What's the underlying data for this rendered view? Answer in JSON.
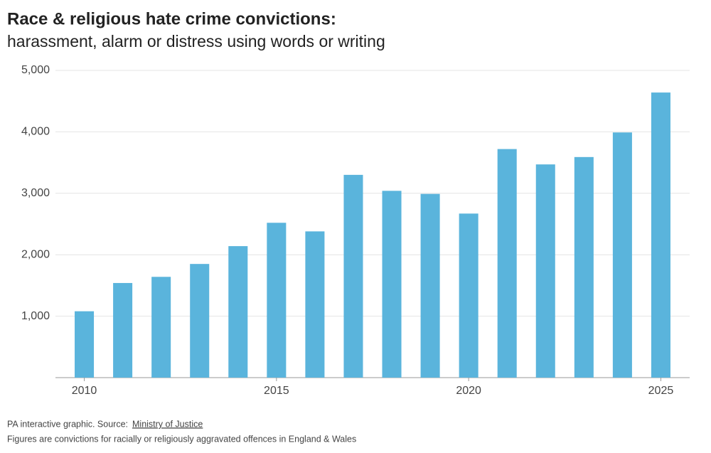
{
  "chart_data": {
    "type": "bar",
    "title": "Race & religious hate crime convictions:",
    "subtitle": "harassment, alarm or distress using words or writing",
    "x": [
      2010,
      2011,
      2012,
      2013,
      2014,
      2015,
      2016,
      2017,
      2018,
      2019,
      2020,
      2021,
      2022,
      2023,
      2024,
      2025
    ],
    "values": [
      1080,
      1540,
      1640,
      1850,
      2140,
      2520,
      2380,
      3300,
      3040,
      2990,
      2670,
      3720,
      3470,
      3590,
      3990,
      4640
    ],
    "color": "#5ab4dc",
    "xlim": [
      2009.25,
      2025.75
    ],
    "xticks": [
      2010,
      2015,
      2020,
      2025
    ],
    "ylim": [
      0,
      5000
    ],
    "yticks": [
      {
        "value": 1000,
        "label": "1,000"
      },
      {
        "value": 2000,
        "label": "2,000"
      },
      {
        "value": 3000,
        "label": "3,000"
      },
      {
        "value": 4000,
        "label": "4,000"
      },
      {
        "value": 5000,
        "label": "5,000"
      }
    ],
    "grid": true,
    "source": {
      "text": "PA interactive graphic. Source:",
      "link": "Ministry of Justice"
    },
    "note": "Figures are convictions for racially or religiously aggravated offences in England & Wales"
  }
}
